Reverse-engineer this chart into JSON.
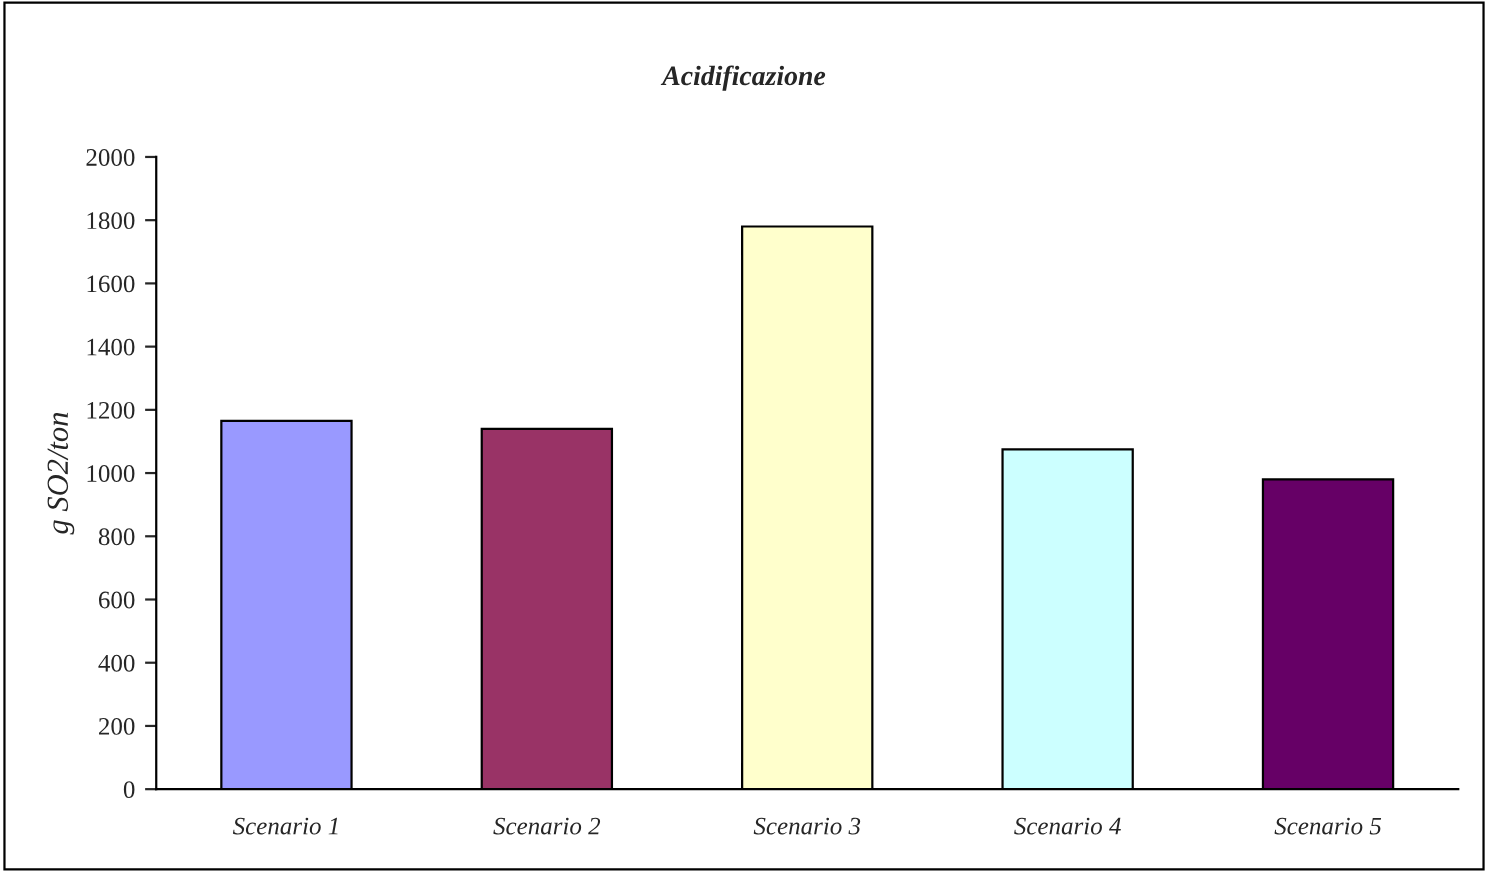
{
  "chart_data": {
    "type": "bar",
    "title": "Acidificazione",
    "ylabel": "g SO2/ton",
    "categories": [
      "Scenario 1",
      "Scenario 2",
      "Scenario 3",
      "Scenario 4",
      "Scenario 5"
    ],
    "values": [
      1165,
      1140,
      1780,
      1075,
      980
    ],
    "colors": [
      "#9999ff",
      "#993366",
      "#ffffcc",
      "#ccffff",
      "#660066"
    ],
    "ylim": [
      0,
      2000
    ],
    "yticks": [
      0,
      200,
      400,
      600,
      800,
      1000,
      1200,
      1400,
      1600,
      1800,
      2000
    ],
    "grid": false
  }
}
